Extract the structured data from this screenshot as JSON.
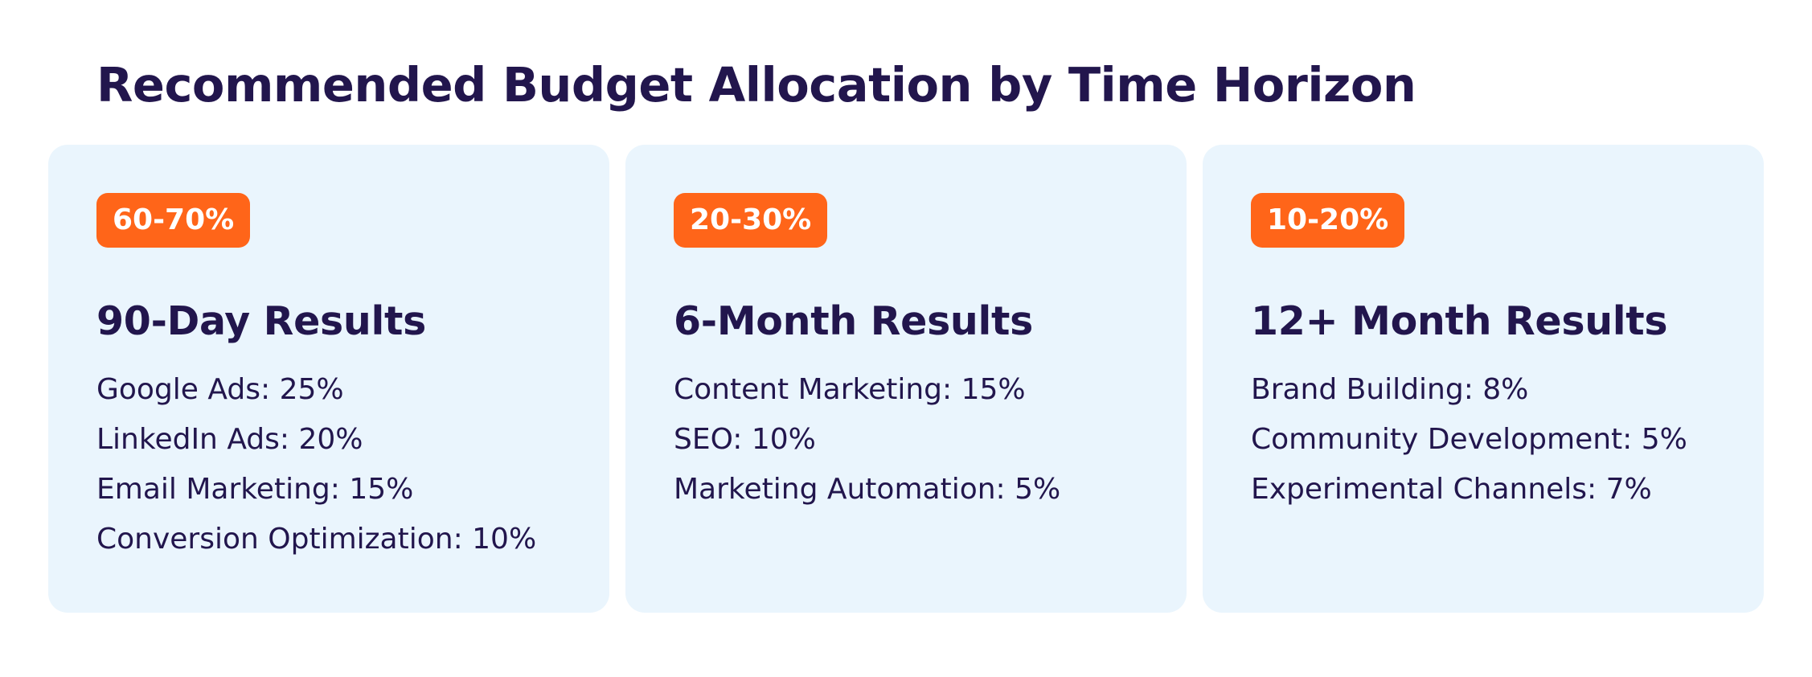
{
  "title": "Recommended Budget Allocation by Time Horizon",
  "cards": [
    {
      "badge": "60-70%",
      "title": "90-Day Results",
      "items": [
        "Google Ads: 25%",
        "LinkedIn Ads: 20%",
        "Email Marketing: 15%",
        "Conversion Optimization: 10%"
      ]
    },
    {
      "badge": "20-30%",
      "title": "6-Month Results",
      "items": [
        "Content Marketing: 15%",
        "SEO: 10%",
        "Marketing Automation: 5%"
      ]
    },
    {
      "badge": "10-20%",
      "title": "12+ Month Results",
      "items": [
        "Brand Building: 8%",
        "Community Development: 5%",
        "Experimental Channels: 7%"
      ]
    }
  ],
  "colors": {
    "heading": "#22164d",
    "card_background": "#eaf5fd",
    "badge_background": "#ff6519",
    "badge_text": "#ffffff"
  }
}
